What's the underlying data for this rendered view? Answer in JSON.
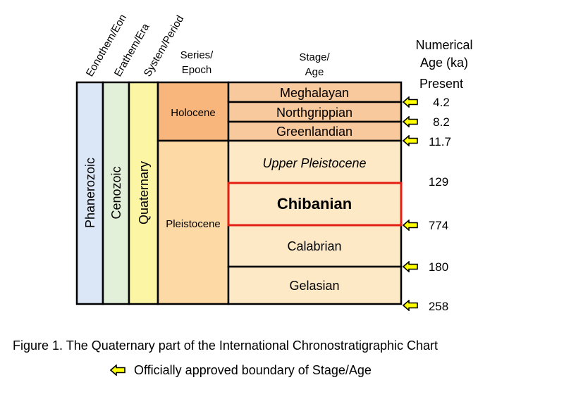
{
  "headers": {
    "eonothem": "Eonothem/Eon",
    "erathem": "Erathem/Era",
    "system": "System/Period",
    "series_line1": "Series/",
    "series_line2": "Epoch",
    "stage_line1": "Stage/",
    "stage_line2": "Age",
    "numerical_line1": "Numerical",
    "numerical_line2": "Age (ka)"
  },
  "columns": {
    "eon": "Phanerozoic",
    "era": "Cenozoic",
    "period": "Quaternary"
  },
  "epochs": [
    {
      "label": "Holocene",
      "color": "#f8b67d"
    },
    {
      "label": "Pleistocene",
      "color": "#fdd9a6"
    }
  ],
  "stages": [
    {
      "label": "Meghalayan",
      "style": "normal",
      "color": "#f9c99e"
    },
    {
      "label": "Northgrippian",
      "style": "normal",
      "color": "#f9c99e"
    },
    {
      "label": "Greenlandian",
      "style": "normal",
      "color": "#f9c99e"
    },
    {
      "label": "Upper Pleistocene",
      "style": "italic",
      "color": "#fee9c6"
    },
    {
      "label": "Chibanian",
      "style": "bold",
      "color": "#fee9c6"
    },
    {
      "label": "Calabrian",
      "style": "normal",
      "color": "#fee9c6"
    },
    {
      "label": "Gelasian",
      "style": "normal",
      "color": "#fee9c6"
    }
  ],
  "ages": [
    {
      "label": "Present",
      "approved": false
    },
    {
      "label": "4.2",
      "approved": true
    },
    {
      "label": "8.2",
      "approved": true
    },
    {
      "label": "11.7",
      "approved": true
    },
    {
      "label": "129",
      "approved": false
    },
    {
      "label": "774",
      "approved": true
    },
    {
      "label": "180",
      "approved": true
    },
    {
      "label": "258",
      "approved": true
    }
  ],
  "colors": {
    "eon": "#dbe6f6",
    "era": "#e3f0d9",
    "period": "#fbf5a4",
    "highlight": "#e41e12",
    "arrow": "#ffff00"
  },
  "caption": "Figure 1. The Quaternary part of the International Chronostratigraphic Chart",
  "legend": "Officially approved boundary of Stage/Age"
}
